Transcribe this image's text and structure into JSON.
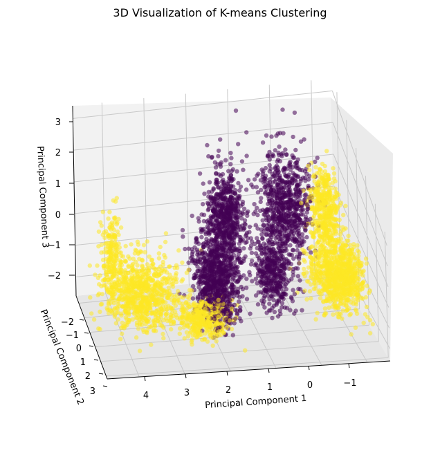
{
  "chart_data": {
    "type": "scatter",
    "title": "3D Visualization of K-means Clustering",
    "xlabel": "Principal Component 1",
    "ylabel": "Principal Component 2",
    "zlabel": "Principal Component 3",
    "xlim": [
      -1.5,
      4.7
    ],
    "ylim": [
      -2.5,
      3.2
    ],
    "zlim": [
      -2.6,
      3.4
    ],
    "x_ticks": [
      "4",
      "3",
      "2",
      "1",
      "0",
      "−1"
    ],
    "y_ticks": [
      "−2",
      "−1",
      "0",
      "1",
      "2",
      "3"
    ],
    "z_ticks": [
      "3",
      "2",
      "1",
      "0",
      "−1",
      "−2"
    ],
    "grid": true,
    "colors": {
      "cluster_0": "#440154",
      "cluster_1": "#fde725",
      "pane": "#f2f2f2",
      "grid": "#c8c8c8"
    },
    "series": [
      {
        "cluster": 0,
        "blobs": [
          {
            "x": 1.8,
            "y": 0.2,
            "z": -1.0,
            "sx": 0.25,
            "sy": 0.6,
            "sz": 0.9,
            "n": 900
          },
          {
            "x": 1.3,
            "y": -1.3,
            "z": 0.2,
            "sx": 0.2,
            "sy": 0.4,
            "sz": 0.8,
            "n": 600
          },
          {
            "x": -0.1,
            "y": -1.4,
            "z": 0.3,
            "sx": 0.3,
            "sy": 0.4,
            "sz": 0.9,
            "n": 700
          },
          {
            "x": 0.4,
            "y": -0.3,
            "z": -1.2,
            "sx": 0.2,
            "sy": 0.5,
            "sz": 0.6,
            "n": 400
          }
        ]
      },
      {
        "cluster": 1,
        "blobs": [
          {
            "x": 3.5,
            "y": 0.3,
            "z": -1.2,
            "sx": 0.45,
            "sy": 0.6,
            "sz": 0.6,
            "n": 800
          },
          {
            "x": 4.2,
            "y": 0.5,
            "z": 0.6,
            "sx": 0.12,
            "sy": 0.2,
            "sz": 0.8,
            "n": 200
          },
          {
            "x": 2.2,
            "y": 0.8,
            "z": -2.0,
            "sx": 0.3,
            "sy": 0.4,
            "sz": 0.3,
            "n": 400
          },
          {
            "x": -1.0,
            "y": 0.2,
            "z": -1.0,
            "sx": 0.3,
            "sy": 0.6,
            "sz": 0.6,
            "n": 1000
          },
          {
            "x": -0.9,
            "y": -0.8,
            "z": 0.7,
            "sx": 0.15,
            "sy": 0.3,
            "sz": 0.6,
            "n": 400
          }
        ]
      }
    ]
  }
}
